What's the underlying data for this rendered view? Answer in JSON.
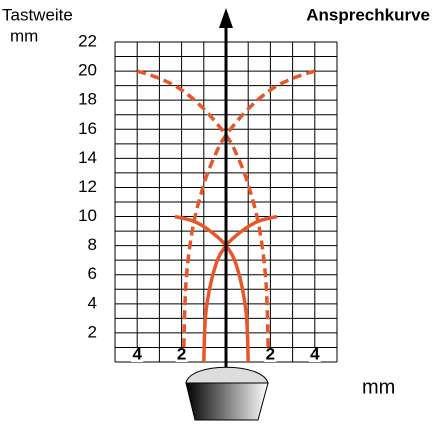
{
  "chart_data": {
    "type": "line",
    "title": "Ansprechkurve",
    "y_label": "Tastweite",
    "y_unit": "mm",
    "x_unit": "mm",
    "xlim": [
      -5,
      5
    ],
    "ylim": [
      0,
      22
    ],
    "xticks": [
      {
        "value": -4,
        "label": "4"
      },
      {
        "value": -2,
        "label": "2"
      },
      {
        "value": 2,
        "label": "2"
      },
      {
        "value": 4,
        "label": "4"
      }
    ],
    "yticks": [
      2,
      4,
      6,
      8,
      10,
      12,
      14,
      16,
      18,
      20,
      22
    ],
    "grid": true,
    "series": [
      {
        "color": "#e8572a",
        "style": "dashed",
        "x": [
          -4,
          -3,
          -2,
          -1,
          0,
          0.5,
          1,
          1.5,
          1.8,
          1.9
        ],
        "values": [
          20,
          19.5,
          18.7,
          17.4,
          15.6,
          14.2,
          12.2,
          9.2,
          5.5,
          1
        ]
      },
      {
        "color": "#e8572a",
        "style": "dashed",
        "x": [
          4,
          3,
          2,
          1,
          0,
          -0.5,
          -1,
          -1.5,
          -1.8,
          -1.9
        ],
        "values": [
          20,
          19.5,
          18.7,
          17.4,
          15.6,
          14.2,
          12.2,
          9.2,
          5.5,
          1
        ]
      },
      {
        "color": "#e8572a",
        "style": "solid",
        "x": [
          -2.3,
          -1.5,
          -0.8,
          0,
          0.5,
          0.9,
          1
        ],
        "values": [
          10,
          9.7,
          9.1,
          8,
          6.5,
          3.5,
          0
        ]
      },
      {
        "color": "#e8572a",
        "style": "solid",
        "x": [
          2.3,
          1.5,
          0.8,
          0,
          -0.5,
          -0.9,
          -1
        ],
        "values": [
          10,
          9.7,
          9.1,
          8,
          6.5,
          3.5,
          0
        ]
      }
    ]
  }
}
